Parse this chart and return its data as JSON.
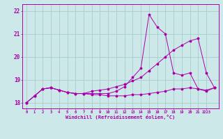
{
  "xlabel": "Windchill (Refroidissement éolien,°C)",
  "ylabel": "",
  "bg_color": "#cce8e8",
  "grid_color": "#aacccc",
  "line_color": "#aa00aa",
  "xlim": [
    -0.5,
    23.5
  ],
  "ylim": [
    17.75,
    22.3
  ],
  "yticks": [
    18,
    19,
    20,
    21,
    22
  ],
  "xtick_labels": [
    "0",
    "1",
    "2",
    "3",
    "4",
    "5",
    "6",
    "7",
    "8",
    "9",
    "10",
    "11",
    "12",
    "13",
    "14",
    "15",
    "16",
    "17",
    "18",
    "19",
    "20",
    "21",
    "2223"
  ],
  "xtick_pos": [
    0,
    1,
    2,
    3,
    4,
    5,
    6,
    7,
    8,
    9,
    10,
    11,
    12,
    13,
    14,
    15,
    16,
    17,
    18,
    19,
    20,
    21,
    22
  ],
  "lines": [
    {
      "x": [
        0,
        1,
        2,
        3,
        4,
        5,
        6,
        7,
        8,
        9,
        10,
        11,
        12,
        13,
        14,
        15,
        16,
        17,
        18,
        19,
        20,
        21,
        22,
        23
      ],
      "y": [
        18.0,
        18.3,
        18.6,
        18.65,
        18.55,
        18.45,
        18.4,
        18.4,
        18.35,
        18.35,
        18.3,
        18.3,
        18.3,
        18.35,
        18.35,
        18.4,
        18.45,
        18.5,
        18.6,
        18.6,
        18.65,
        18.6,
        18.55,
        18.65
      ]
    },
    {
      "x": [
        0,
        1,
        2,
        3,
        4,
        5,
        6,
        7,
        8,
        9,
        10,
        11,
        12,
        13,
        14,
        15,
        16,
        17,
        18,
        19,
        20,
        21,
        22,
        23
      ],
      "y": [
        18.0,
        18.3,
        18.6,
        18.65,
        18.55,
        18.45,
        18.4,
        18.4,
        18.5,
        18.55,
        18.6,
        18.7,
        18.8,
        18.95,
        19.1,
        19.4,
        19.7,
        20.0,
        20.3,
        20.5,
        20.7,
        20.8,
        19.3,
        18.65
      ]
    },
    {
      "x": [
        0,
        1,
        2,
        3,
        4,
        5,
        6,
        7,
        8,
        9,
        10,
        11,
        12,
        13,
        14,
        15,
        16,
        17,
        18,
        19,
        20,
        21,
        22,
        23
      ],
      "y": [
        18.0,
        18.3,
        18.6,
        18.65,
        18.55,
        18.45,
        18.4,
        18.4,
        18.4,
        18.4,
        18.4,
        18.5,
        18.7,
        19.1,
        19.5,
        21.85,
        21.3,
        21.0,
        19.3,
        19.2,
        19.3,
        18.6,
        18.5,
        18.65
      ]
    }
  ]
}
